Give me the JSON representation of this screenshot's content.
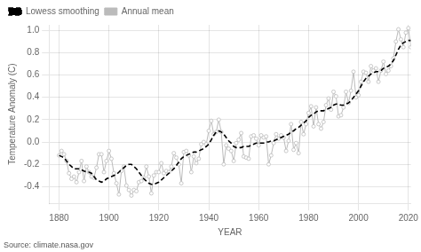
{
  "chart_data": {
    "type": "line",
    "xlabel": "YEAR",
    "ylabel": "Temperature Anomaly (C)",
    "annotation": "Source: climate.nasa.gov",
    "x": [
      1880,
      1881,
      1882,
      1883,
      1884,
      1885,
      1886,
      1887,
      1888,
      1889,
      1890,
      1891,
      1892,
      1893,
      1894,
      1895,
      1896,
      1897,
      1898,
      1899,
      1900,
      1901,
      1902,
      1903,
      1904,
      1905,
      1906,
      1907,
      1908,
      1909,
      1910,
      1911,
      1912,
      1913,
      1914,
      1915,
      1916,
      1917,
      1918,
      1919,
      1920,
      1921,
      1922,
      1923,
      1924,
      1925,
      1926,
      1927,
      1928,
      1929,
      1930,
      1931,
      1932,
      1933,
      1934,
      1935,
      1936,
      1937,
      1938,
      1939,
      1940,
      1941,
      1942,
      1943,
      1944,
      1945,
      1946,
      1947,
      1948,
      1949,
      1950,
      1951,
      1952,
      1953,
      1954,
      1955,
      1956,
      1957,
      1958,
      1959,
      1960,
      1961,
      1962,
      1963,
      1964,
      1965,
      1966,
      1967,
      1968,
      1969,
      1970,
      1971,
      1972,
      1973,
      1974,
      1975,
      1976,
      1977,
      1978,
      1979,
      1980,
      1981,
      1982,
      1983,
      1984,
      1985,
      1986,
      1987,
      1988,
      1989,
      1990,
      1991,
      1992,
      1993,
      1994,
      1995,
      1996,
      1997,
      1998,
      1999,
      2000,
      2001,
      2002,
      2003,
      2004,
      2005,
      2006,
      2007,
      2008,
      2009,
      2010,
      2011,
      2012,
      2013,
      2014,
      2015,
      2016,
      2017,
      2018,
      2019,
      2020,
      2021
    ],
    "series": [
      {
        "name": "Lowess smoothing",
        "color": "#000000",
        "line_style": "dashed",
        "marker": "none",
        "values": [
          -0.12,
          -0.13,
          -0.14,
          -0.17,
          -0.2,
          -0.22,
          -0.24,
          -0.24,
          -0.24,
          -0.25,
          -0.26,
          -0.27,
          -0.27,
          -0.28,
          -0.31,
          -0.34,
          -0.35,
          -0.36,
          -0.35,
          -0.33,
          -0.32,
          -0.31,
          -0.3,
          -0.29,
          -0.27,
          -0.25,
          -0.23,
          -0.21,
          -0.2,
          -0.2,
          -0.22,
          -0.24,
          -0.27,
          -0.3,
          -0.33,
          -0.35,
          -0.37,
          -0.38,
          -0.38,
          -0.37,
          -0.36,
          -0.34,
          -0.32,
          -0.3,
          -0.28,
          -0.26,
          -0.24,
          -0.21,
          -0.18,
          -0.15,
          -0.13,
          -0.12,
          -0.11,
          -0.1,
          -0.09,
          -0.09,
          -0.08,
          -0.07,
          -0.06,
          -0.04,
          -0.02,
          0.02,
          0.06,
          0.09,
          0.1,
          0.09,
          0.07,
          0.04,
          0.01,
          -0.01,
          -0.04,
          -0.05,
          -0.05,
          -0.05,
          -0.04,
          -0.04,
          -0.04,
          -0.03,
          -0.02,
          -0.01,
          -0.01,
          -0.01,
          -0.01,
          0.0,
          0.0,
          0.01,
          0.01,
          0.02,
          0.03,
          0.04,
          0.05,
          0.06,
          0.07,
          0.09,
          0.1,
          0.12,
          0.13,
          0.15,
          0.17,
          0.19,
          0.22,
          0.24,
          0.25,
          0.27,
          0.28,
          0.28,
          0.28,
          0.29,
          0.3,
          0.31,
          0.33,
          0.34,
          0.34,
          0.33,
          0.33,
          0.34,
          0.35,
          0.37,
          0.4,
          0.43,
          0.46,
          0.5,
          0.54,
          0.57,
          0.59,
          0.61,
          0.62,
          0.63,
          0.63,
          0.64,
          0.66,
          0.67,
          0.68,
          0.7,
          0.73,
          0.78,
          0.83,
          0.87,
          0.89,
          0.9,
          0.91,
          0.91
        ]
      },
      {
        "name": "Annual mean",
        "color": "#bbbbbb",
        "line_style": "solid",
        "marker": "circle",
        "values": [
          -0.12,
          -0.08,
          -0.11,
          -0.17,
          -0.28,
          -0.33,
          -0.31,
          -0.36,
          -0.27,
          -0.17,
          -0.35,
          -0.22,
          -0.27,
          -0.31,
          -0.32,
          -0.23,
          -0.11,
          -0.11,
          -0.27,
          -0.17,
          -0.08,
          -0.15,
          -0.28,
          -0.37,
          -0.47,
          -0.26,
          -0.22,
          -0.39,
          -0.43,
          -0.48,
          -0.43,
          -0.44,
          -0.36,
          -0.35,
          -0.32,
          -0.22,
          -0.31,
          -0.46,
          -0.3,
          -0.27,
          -0.27,
          -0.19,
          -0.28,
          -0.26,
          -0.27,
          -0.22,
          -0.1,
          -0.14,
          -0.2,
          -0.37,
          -0.09,
          -0.08,
          -0.12,
          -0.27,
          -0.13,
          -0.19,
          -0.15,
          -0.02,
          -0.0,
          -0.02,
          0.1,
          0.19,
          0.07,
          0.09,
          0.2,
          0.09,
          -0.2,
          -0.03,
          -0.06,
          -0.08,
          -0.17,
          -0.01,
          0.02,
          0.08,
          -0.13,
          -0.14,
          -0.15,
          0.05,
          0.06,
          0.03,
          -0.03,
          0.06,
          0.04,
          0.05,
          -0.2,
          -0.12,
          -0.01,
          0.07,
          0.03,
          0.06,
          0.04,
          -0.08,
          0.01,
          0.16,
          -0.07,
          -0.01,
          -0.1,
          0.18,
          0.07,
          0.16,
          0.26,
          0.32,
          0.14,
          0.31,
          0.16,
          0.12,
          0.18,
          0.33,
          0.39,
          0.29,
          0.45,
          0.41,
          0.23,
          0.24,
          0.31,
          0.45,
          0.35,
          0.46,
          0.63,
          0.4,
          0.42,
          0.54,
          0.63,
          0.62,
          0.54,
          0.68,
          0.64,
          0.66,
          0.54,
          0.64,
          0.72,
          0.61,
          0.64,
          0.68,
          0.75,
          0.9,
          1.01,
          0.92,
          0.85,
          0.98,
          1.02,
          0.85
        ]
      }
    ],
    "xlim": [
      1876,
      2021
    ],
    "ylim": [
      -0.55,
      1.05
    ],
    "xticks": [
      1880,
      1900,
      1920,
      1940,
      1960,
      1980,
      2000,
      2020
    ],
    "yticks": [
      -0.4,
      -0.2,
      {
        "value": 0.0,
        "label": "0.0"
      },
      0.2,
      0.4,
      0.6,
      0.8,
      {
        "value": 1.0,
        "label": "1.0"
      }
    ],
    "grid": true,
    "legend": "upper left"
  }
}
